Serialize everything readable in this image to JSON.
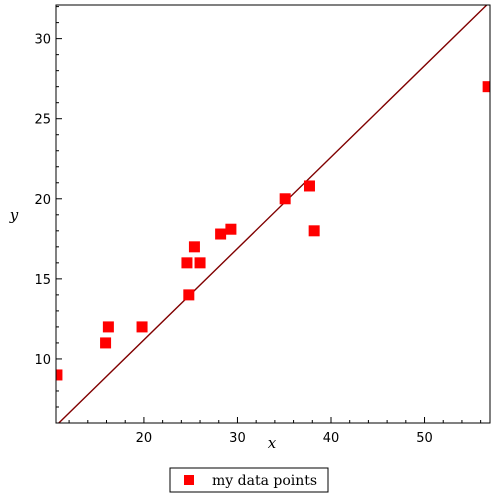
{
  "chart_data": {
    "type": "scatter",
    "xlabel": "x",
    "ylabel": "y",
    "xlim": [
      10.6,
      57.0
    ],
    "ylim": [
      6.0,
      32.1
    ],
    "xticks": [
      20,
      30,
      40,
      50
    ],
    "yticks": [
      10,
      15,
      20,
      25,
      30
    ],
    "x_minor_step": 2,
    "y_minor_step": 1,
    "grid": false,
    "legend_position": "bottom-center",
    "series": [
      {
        "name": "my data points",
        "kind": "points",
        "marker": "square",
        "color": "#ff0000",
        "points": [
          {
            "x": 10.7,
            "y": 9.0
          },
          {
            "x": 15.9,
            "y": 11.0
          },
          {
            "x": 16.2,
            "y": 12.0
          },
          {
            "x": 19.8,
            "y": 12.0
          },
          {
            "x": 24.6,
            "y": 16.0
          },
          {
            "x": 24.8,
            "y": 14.0
          },
          {
            "x": 25.4,
            "y": 17.0
          },
          {
            "x": 26.0,
            "y": 16.0
          },
          {
            "x": 28.2,
            "y": 17.8
          },
          {
            "x": 29.3,
            "y": 18.1
          },
          {
            "x": 35.1,
            "y": 20.0
          },
          {
            "x": 37.7,
            "y": 20.8
          },
          {
            "x": 38.2,
            "y": 18.0
          },
          {
            "x": 56.8,
            "y": 27.0
          }
        ]
      },
      {
        "kind": "line",
        "color": "#800000",
        "points": [
          {
            "x": 10.9,
            "y": 6.0
          },
          {
            "x": 57.0,
            "y": 32.3
          }
        ]
      }
    ]
  }
}
